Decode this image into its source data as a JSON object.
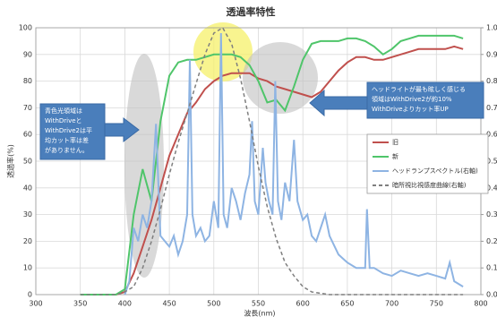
{
  "chart_data": {
    "type": "line",
    "title": "透過率特性",
    "xlabel": "波長(nm)",
    "ylabel": "透過率(%)",
    "xlim": [
      300,
      800
    ],
    "xticks": [
      300,
      350,
      400,
      450,
      500,
      550,
      600,
      650,
      700,
      750,
      800
    ],
    "ylim": [
      0,
      100
    ],
    "yticks": [
      0,
      10,
      20,
      30,
      40,
      50,
      60,
      70,
      80,
      90,
      100
    ],
    "y2lim": [
      0,
      1
    ],
    "y2ticks": [
      {
        "value": 0,
        "label": "0.0"
      },
      0.1,
      0.2,
      0.3,
      0.4,
      0.5,
      0.6,
      0.7,
      0.8,
      0.9,
      {
        "value": 1,
        "label": "1.0"
      }
    ],
    "grid": true,
    "legend": "right",
    "x": [
      350,
      360,
      370,
      380,
      390,
      400,
      410,
      420,
      430,
      440,
      450,
      460,
      470,
      480,
      490,
      500,
      510,
      520,
      530,
      540,
      550,
      560,
      570,
      580,
      590,
      600,
      610,
      620,
      630,
      640,
      650,
      660,
      670,
      680,
      690,
      700,
      710,
      720,
      730,
      740,
      750,
      760,
      770,
      780
    ],
    "series": [
      {
        "name": "旧",
        "color": "#c0504d",
        "values": [
          0,
          0,
          0,
          0,
          0,
          1,
          8,
          18,
          28,
          40,
          52,
          60,
          68,
          72,
          77,
          80,
          82,
          83,
          83,
          83,
          81,
          80,
          78,
          77,
          76,
          75,
          74,
          76,
          80,
          84,
          87,
          89,
          89,
          88,
          88,
          89,
          90,
          91,
          92,
          92,
          92,
          92,
          93,
          92
        ]
      },
      {
        "name": "新",
        "color": "#4fc56a",
        "values": [
          0,
          0,
          0,
          0,
          0,
          2,
          30,
          47,
          35,
          65,
          82,
          87,
          88,
          88,
          89,
          90,
          90,
          90,
          89,
          86,
          80,
          72,
          73,
          69,
          78,
          88,
          94,
          95,
          95,
          95,
          96,
          96,
          95,
          93,
          90,
          92,
          95,
          96,
          97,
          97,
          97,
          97,
          97,
          96
        ]
      },
      {
        "name": "ヘッドランプスペクトル(右軸)",
        "color": "#8eb4e3",
        "axis": "y2",
        "x": [
          400,
          405,
          410,
          415,
          420,
          425,
          430,
          435,
          440,
          445,
          450,
          455,
          460,
          465,
          470,
          473,
          476,
          480,
          485,
          490,
          495,
          500,
          505,
          508,
          511,
          515,
          520,
          525,
          530,
          535,
          540,
          543,
          546,
          550,
          555,
          558,
          562,
          566,
          569,
          572,
          576,
          580,
          585,
          590,
          594,
          600,
          605,
          610,
          615,
          620,
          625,
          630,
          640,
          650,
          660,
          670,
          672,
          675,
          680,
          690,
          700,
          710,
          720,
          730,
          740,
          750,
          760,
          765,
          770,
          780
        ],
        "values": [
          0,
          0.05,
          0.25,
          0.2,
          0.3,
          0.25,
          0.35,
          0.64,
          0.22,
          0.2,
          0.18,
          0.22,
          0.15,
          0.2,
          0.3,
          0.88,
          0.3,
          0.22,
          0.25,
          0.2,
          0.22,
          0.35,
          0.25,
          0.98,
          0.3,
          0.25,
          0.4,
          0.35,
          0.28,
          0.38,
          0.45,
          0.65,
          0.35,
          0.3,
          0.55,
          0.42,
          0.35,
          0.3,
          0.8,
          0.35,
          0.28,
          0.42,
          0.35,
          0.58,
          0.35,
          0.28,
          0.3,
          0.22,
          0.2,
          0.25,
          0.3,
          0.22,
          0.15,
          0.12,
          0.1,
          0.1,
          0.32,
          0.1,
          0.1,
          0.08,
          0.07,
          0.09,
          0.08,
          0.07,
          0.08,
          0.07,
          0.06,
          0.12,
          0.05,
          0.03
        ]
      },
      {
        "name": "暗所視比視感度曲線(右軸)",
        "color": "#7f7f7f",
        "axis": "y2",
        "dash": true,
        "values": [
          0,
          0,
          0,
          0,
          0,
          0.01,
          0.03,
          0.1,
          0.2,
          0.32,
          0.45,
          0.57,
          0.68,
          0.79,
          0.9,
          0.98,
          1,
          0.94,
          0.81,
          0.65,
          0.48,
          0.33,
          0.21,
          0.12,
          0.07,
          0.03,
          0.01,
          0.005,
          0,
          0,
          0,
          0,
          0,
          0,
          0,
          0,
          0,
          0,
          0,
          0,
          0,
          0,
          0,
          0
        ]
      }
    ],
    "annotations": [
      {
        "lines": [
          "青色光領域は",
          "WithDriveと",
          "WithDrive2は平",
          "均カット率は差",
          "がありません。"
        ]
      },
      {
        "lines": [
          "ヘッドライトが最も眩しく感じる",
          "領域はWithDrive2が約10%",
          "WithDriveよりカット率UP"
        ]
      }
    ]
  }
}
